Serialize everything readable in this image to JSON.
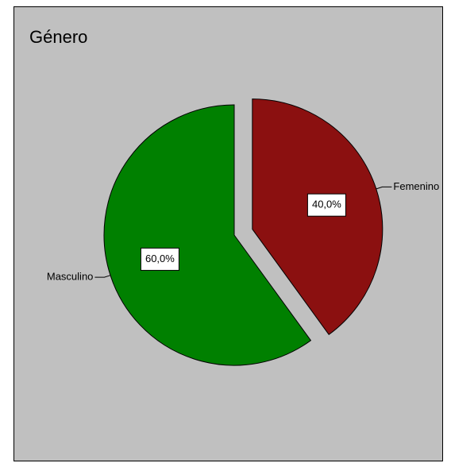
{
  "chart_data": {
    "type": "pie",
    "title": "Género",
    "categories": [
      "Femenino",
      "Masculino"
    ],
    "values": [
      40,
      60
    ],
    "value_labels": [
      "40,0%",
      "60,0%"
    ],
    "colors": [
      "#8b1010",
      "#008000"
    ],
    "exploded": [
      true,
      false
    ]
  }
}
